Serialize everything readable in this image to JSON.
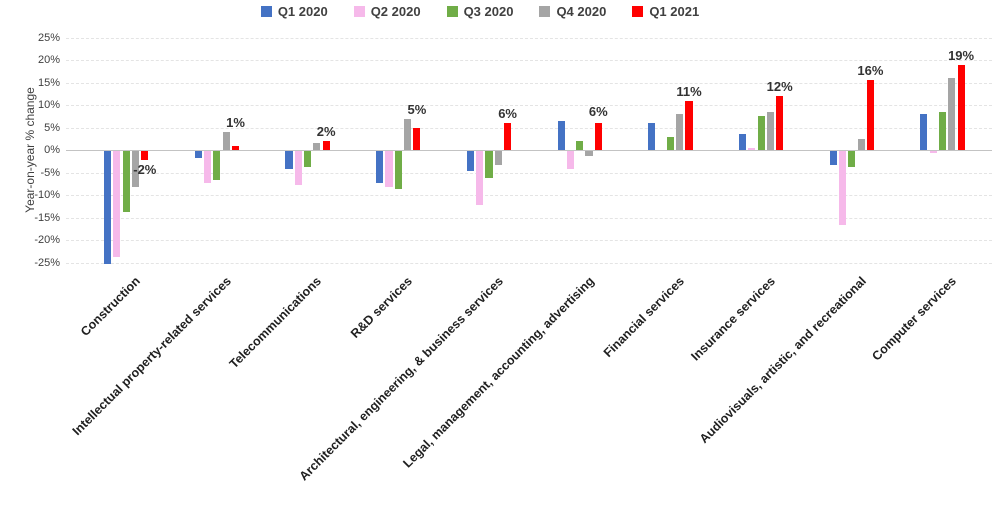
{
  "chart_data": {
    "type": "bar",
    "title": "",
    "ylabel": "Year-on-year % change",
    "ylim": [
      -25,
      25
    ],
    "ytick_step": 5,
    "ytick_suffix": "%",
    "grid": true,
    "legend_position": "top",
    "categories": [
      "Construction",
      "Intellectual property-related services",
      "Telecommunications",
      "R&D services",
      "Architectural, engineering, & business services",
      "Legal, management, accounting, advertising",
      "Financial services",
      "Insurance services",
      "Audiovisuals, artistic, and recreational",
      "Computer services"
    ],
    "series": [
      {
        "name": "Q1 2020",
        "color": "#4472C4",
        "values": [
          -25,
          -1.5,
          -4,
          -7,
          -4.5,
          6.5,
          6,
          3.5,
          -3,
          8
        ]
      },
      {
        "name": "Q2 2020",
        "color": "#F6B9EA",
        "values": [
          -23.5,
          -7,
          -7.5,
          -8,
          -12,
          -4,
          0,
          0.5,
          -16.5,
          -0.5
        ]
      },
      {
        "name": "Q3 2020",
        "color": "#70AD47",
        "values": [
          -13.5,
          -6.5,
          -3.5,
          -8.5,
          -6,
          2,
          3,
          7.5,
          -3.5,
          8.5
        ]
      },
      {
        "name": "Q4 2020",
        "color": "#A5A5A5",
        "values": [
          -8,
          4,
          1.5,
          7,
          -3,
          -1,
          8,
          8.5,
          2.5,
          16
        ]
      },
      {
        "name": "Q1 2021",
        "color": "#FF0000",
        "values": [
          -2,
          1,
          2,
          5,
          6,
          6,
          11,
          12,
          15.5,
          19
        ]
      }
    ],
    "data_labels": {
      "series": "Q1 2021",
      "values": [
        "-2%",
        "1%",
        "2%",
        "5%",
        "6%",
        "6%",
        "11%",
        "12%",
        "16%",
        "19%"
      ]
    }
  }
}
